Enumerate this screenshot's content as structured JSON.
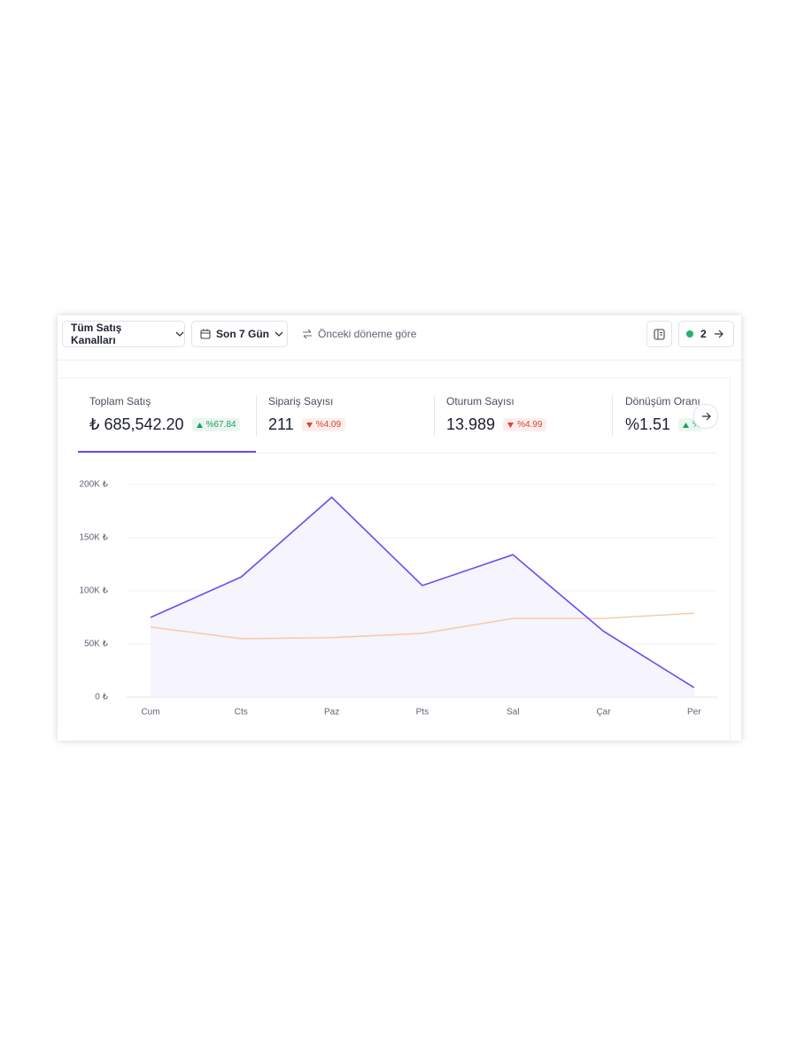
{
  "toolbar": {
    "channel_filter": "Tüm Satış Kanalları",
    "date_filter": "Son 7 Gün",
    "compare": "Önceki döneme göre",
    "active_count": "2"
  },
  "metrics": [
    {
      "label": "Toplam Satış",
      "value": "₺ 685,542.20",
      "change": "%67.84",
      "trend": "up"
    },
    {
      "label": "Sipariş Sayısı",
      "value": "211",
      "change": "%4.09",
      "trend": "down"
    },
    {
      "label": "Oturum Sayısı",
      "value": "13.989",
      "change": "%4.99",
      "trend": "down"
    },
    {
      "label": "Dönüşüm Oranı",
      "value": "%1.51",
      "change": "%",
      "trend": "up"
    }
  ],
  "chart_data": {
    "type": "line",
    "categories": [
      "Cum",
      "Cts",
      "Paz",
      "Pts",
      "Sal",
      "Çar",
      "Per"
    ],
    "series": [
      {
        "color": "#6a4cf0",
        "area_color": "#f6f4fd",
        "values": [
          75000,
          113000,
          188000,
          105000,
          134000,
          62000,
          9000
        ]
      },
      {
        "color": "#f6c9a2",
        "values": [
          66000,
          55000,
          56000,
          60000,
          74000,
          74000,
          79000
        ]
      }
    ],
    "ylim": [
      0,
      200000
    ],
    "yticks": [
      {
        "value": 0,
        "label": "0 ₺"
      },
      {
        "value": 50000,
        "label": "50K ₺"
      },
      {
        "value": 100000,
        "label": "100K ₺"
      },
      {
        "value": 150000,
        "label": "150K ₺"
      },
      {
        "value": 200000,
        "label": "200K ₺"
      }
    ],
    "grid": true
  }
}
